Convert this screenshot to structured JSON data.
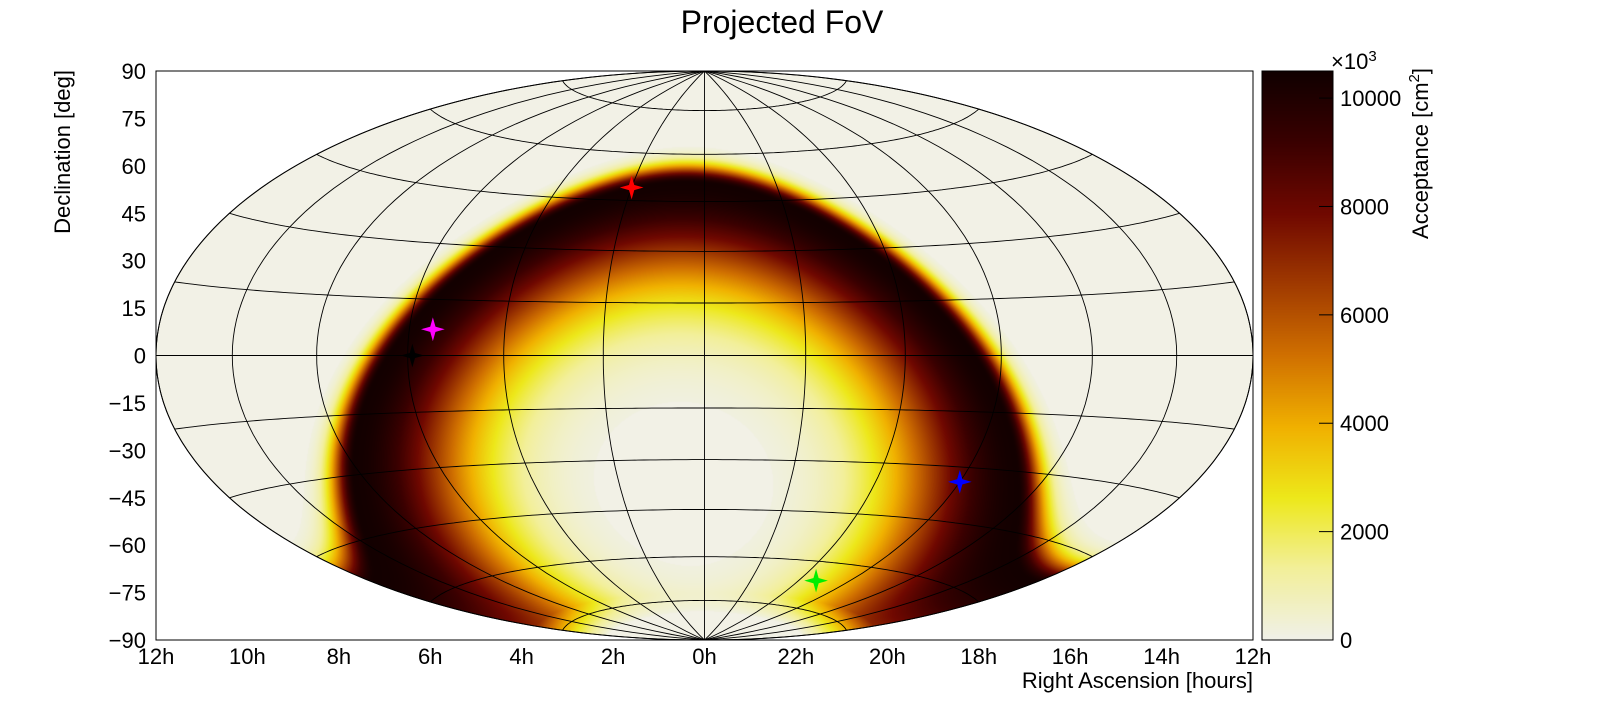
{
  "chart_data": {
    "type": "heatmap",
    "projection": "hammer-aitoff",
    "title": "Projected FoV",
    "xlabel": "Right Ascension [hours]",
    "ylabel": "Declination [deg]",
    "x_ticks": [
      "12h",
      "10h",
      "8h",
      "6h",
      "4h",
      "2h",
      "0h",
      "22h",
      "20h",
      "18h",
      "16h",
      "14h",
      "12h"
    ],
    "y_ticks": [
      90,
      75,
      60,
      45,
      30,
      15,
      0,
      -15,
      -30,
      -45,
      -60,
      -75,
      -90
    ],
    "y_tick_labels": [
      "90",
      "75",
      "60",
      "45",
      "30",
      "15",
      "0",
      "−15",
      "−30",
      "−45",
      "−60",
      "−75",
      "−90"
    ],
    "xlim": [
      12,
      -12
    ],
    "ylim": [
      -90,
      90
    ],
    "grid": true,
    "colorbar": {
      "label": "Acceptance [cm",
      "label_superscript": "2",
      "label_end": "]",
      "multiplier_base": "×10",
      "multiplier_exp": "3",
      "range": [
        0,
        10500
      ],
      "ticks": [
        0,
        2000,
        4000,
        6000,
        8000,
        10000
      ],
      "tick_labels": [
        "0",
        "2000",
        "4000",
        "6000",
        "8000",
        "10000"
      ],
      "colors": [
        "#f0f0e8",
        "#f2ef9a",
        "#ede81a",
        "#f0b000",
        "#d07000",
        "#a03a00",
        "#700800",
        "#3a0000",
        "#100000"
      ]
    },
    "background_color": "#f2f1e6",
    "acceptance_ring": {
      "center_ra_h": 0.5,
      "center_dec_deg": -38,
      "peak_radius_deg": 89,
      "inner_band_deg": 22,
      "outer_band_deg": 4,
      "peak_value": 10400,
      "min_dec_deg": -72
    },
    "markers": [
      {
        "color": "#ff0000",
        "ra_h": 2.0,
        "dec_deg": 49
      },
      {
        "color": "#ff00ff",
        "ra_h": 5.5,
        "dec_deg": 7
      },
      {
        "color": "#000000",
        "ra_h": 5.9,
        "dec_deg": 0
      },
      {
        "color": "#0000ff",
        "ra_h": 18.0,
        "dec_deg": -34
      },
      {
        "color": "#00ee00",
        "ra_h": 19.3,
        "dec_deg": -66
      }
    ]
  }
}
